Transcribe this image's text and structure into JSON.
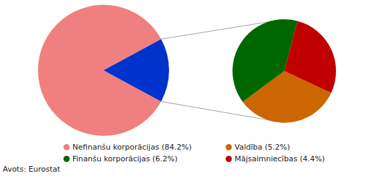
{
  "chart_data": {
    "type": "pie_of_pie",
    "categories": [
      "Nefinanšu korporācijas (84.2%)",
      "Valdība (5.2%)",
      "Finanšu korporācijas (6.2%)",
      "Mājsaimniecības (4.4%)"
    ],
    "values": [
      84.2,
      5.2,
      6.2,
      4.4
    ],
    "colors": [
      "#f07f7f",
      "#cc6600",
      "#006600",
      "#c00000"
    ],
    "color": "#0033cc",
    "source": "Avots: Eurostat"
  }
}
